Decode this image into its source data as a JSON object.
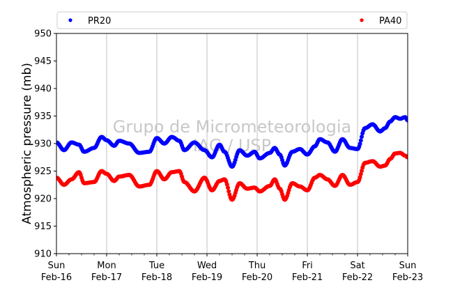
{
  "chart_data": {
    "type": "scatter",
    "title": "",
    "xlabel": "",
    "ylabel": "Atmospheric pressure (mb)",
    "ylim": [
      910,
      950
    ],
    "xlim": [
      0,
      7
    ],
    "yticks": [
      910,
      915,
      920,
      925,
      930,
      935,
      940,
      945,
      950
    ],
    "xticks": [
      {
        "day": "Sun",
        "date": "Feb-16"
      },
      {
        "day": "Mon",
        "date": "Feb-17"
      },
      {
        "day": "Tue",
        "date": "Feb-18"
      },
      {
        "day": "Wed",
        "date": "Feb-19"
      },
      {
        "day": "Thu",
        "date": "Feb-20"
      },
      {
        "day": "Fri",
        "date": "Feb-21"
      },
      {
        "day": "Sat",
        "date": "Feb-22"
      },
      {
        "day": "Sun",
        "date": "Feb-23"
      }
    ],
    "grid": "vertical",
    "legend_position": "top",
    "watermark": [
      "Grupo de Micrometeorologia",
      "IAG / USP"
    ],
    "series": [
      {
        "name": "PR20",
        "color": "#0000ff",
        "x": [
          0,
          0.15,
          0.3,
          0.45,
          0.55,
          0.75,
          0.9,
          1.0,
          1.15,
          1.25,
          1.45,
          1.65,
          1.85,
          2.0,
          2.15,
          2.3,
          2.45,
          2.55,
          2.75,
          2.95,
          3.1,
          3.25,
          3.35,
          3.5,
          3.65,
          3.8,
          3.95,
          4.05,
          4.25,
          4.35,
          4.45,
          4.55,
          4.7,
          4.85,
          5.0,
          5.15,
          5.25,
          5.4,
          5.55,
          5.7,
          5.85,
          6.0,
          6.15,
          6.3,
          6.45,
          6.55,
          6.65,
          6.75,
          6.85,
          6.95,
          7.0
        ],
        "y": [
          930.2,
          928.8,
          930.2,
          929.8,
          928.5,
          929.2,
          931.2,
          930.6,
          929.6,
          930.5,
          930.0,
          928.3,
          928.5,
          931.0,
          930.0,
          931.2,
          930.5,
          928.8,
          930.2,
          928.8,
          927.5,
          929.8,
          928.5,
          925.8,
          928.8,
          927.8,
          928.5,
          927.3,
          928.3,
          929.2,
          928.0,
          926.0,
          928.5,
          929.0,
          928.0,
          929.5,
          930.8,
          930.2,
          928.5,
          930.8,
          929.2,
          929.0,
          932.8,
          933.5,
          932.2,
          932.8,
          934.0,
          934.8,
          934.5,
          934.8,
          934.2
        ]
      },
      {
        "name": "PA40",
        "color": "#ff0000",
        "x": [
          0,
          0.15,
          0.3,
          0.45,
          0.55,
          0.75,
          0.9,
          1.0,
          1.15,
          1.25,
          1.45,
          1.65,
          1.85,
          2.0,
          2.15,
          2.3,
          2.45,
          2.55,
          2.75,
          2.95,
          3.1,
          3.25,
          3.35,
          3.5,
          3.65,
          3.8,
          3.95,
          4.05,
          4.25,
          4.35,
          4.45,
          4.55,
          4.7,
          4.85,
          5.0,
          5.15,
          5.25,
          5.4,
          5.55,
          5.7,
          5.85,
          6.0,
          6.15,
          6.3,
          6.45,
          6.55,
          6.65,
          6.75,
          6.85,
          6.95,
          7.0
        ],
        "y": [
          923.8,
          922.5,
          923.5,
          924.8,
          922.8,
          923.0,
          925.0,
          924.5,
          923.2,
          924.0,
          924.3,
          922.2,
          922.5,
          925.0,
          923.5,
          924.8,
          925.0,
          923.0,
          921.3,
          923.8,
          921.5,
          923.2,
          923.5,
          919.8,
          922.8,
          921.8,
          922.0,
          921.3,
          922.3,
          923.5,
          921.8,
          919.8,
          922.8,
          922.2,
          921.5,
          923.8,
          924.3,
          923.5,
          922.3,
          924.3,
          922.5,
          923.0,
          926.5,
          926.8,
          925.8,
          926.0,
          927.2,
          928.2,
          928.3,
          927.8,
          927.5
        ]
      }
    ]
  }
}
